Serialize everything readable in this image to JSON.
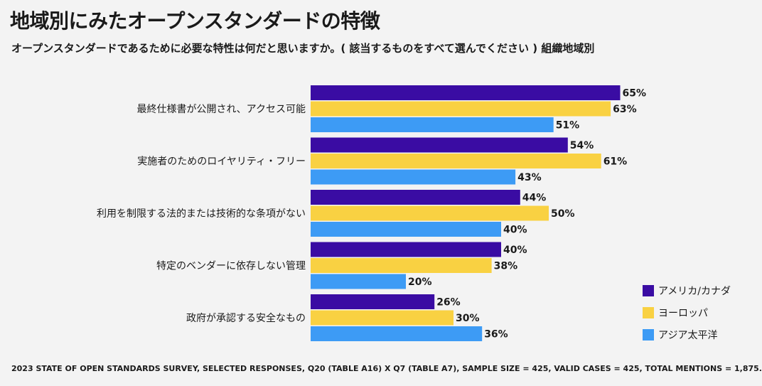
{
  "header": {
    "title": "地域別にみたオープンスタンダードの特徴",
    "subtitle": "オープンスタンダードであるために必要な特性は何だと思いますか。( 該当するものをすべて選んでください ) 組織地域別"
  },
  "footnote": "2023 STATE OF OPEN STANDARDS SURVEY, SELECTED RESPONSES, Q20 (TABLE A16) X Q7 (TABLE A7), SAMPLE SIZE = 425, VALID CASES = 425, TOTAL MENTIONS = 1,875.",
  "colors": {
    "series": [
      "#3a0ca3",
      "#f9d142",
      "#3d9bf5"
    ]
  },
  "chart_data": {
    "type": "bar",
    "orientation": "horizontal",
    "categories": [
      "最終仕様書が公開され、アクセス可能",
      "実施者のためのロイヤリティ・フリー",
      "利用を制限する法的または技術的な条項がない",
      "特定のベンダーに依存しない管理",
      "政府が承認する安全なもの"
    ],
    "series": [
      {
        "name": "アメリカ/カナダ",
        "values": [
          65,
          54,
          44,
          40,
          26
        ]
      },
      {
        "name": "ヨーロッパ",
        "values": [
          63,
          61,
          50,
          38,
          30
        ]
      },
      {
        "name": "アジア太平洋",
        "values": [
          51,
          43,
          40,
          20,
          36
        ]
      }
    ],
    "value_suffix": "%",
    "xlim": [
      0,
      100
    ],
    "grid": false,
    "legend_position": "bottom-right"
  }
}
